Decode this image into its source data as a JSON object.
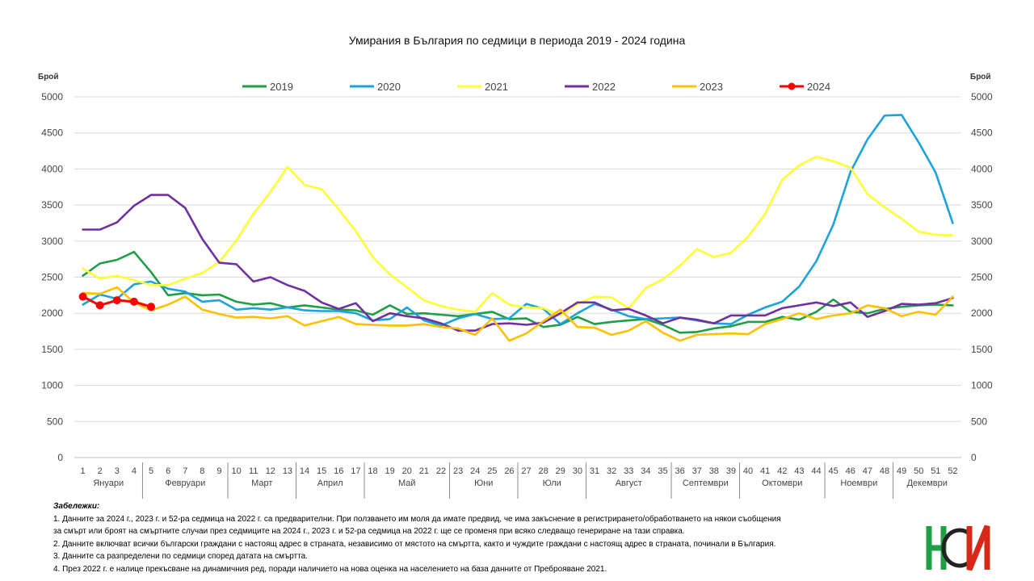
{
  "chart_data": {
    "type": "line",
    "title": "Умирания в България по седмици в периода 2019 - 2024 година",
    "ylabel_left": "Брой",
    "ylabel_right": "Брой",
    "ylim": [
      0,
      5000
    ],
    "yticks": [
      0,
      500,
      1000,
      1500,
      2000,
      2500,
      3000,
      3500,
      4000,
      4500,
      5000
    ],
    "grid": true,
    "legend_position": "top",
    "weeks": [
      "1",
      "2",
      "3",
      "4",
      "5",
      "6",
      "7",
      "8",
      "9",
      "10",
      "11",
      "12",
      "13",
      "14",
      "15",
      "16",
      "17",
      "18",
      "19",
      "20",
      "21",
      "22",
      "23",
      "24",
      "25",
      "26",
      "27",
      "28",
      "29",
      "30",
      "31",
      "32",
      "33",
      "34",
      "35",
      "36",
      "37",
      "38",
      "39",
      "40",
      "41",
      "42",
      "43",
      "44",
      "45",
      "46",
      "47",
      "48",
      "49",
      "50",
      "51",
      "52"
    ],
    "months": [
      {
        "label": "Януари",
        "from": 1,
        "to": 4
      },
      {
        "label": "Февруари",
        "from": 5,
        "to": 9
      },
      {
        "label": "Март",
        "from": 10,
        "to": 13
      },
      {
        "label": "Април",
        "from": 14,
        "to": 17
      },
      {
        "label": "Май",
        "from": 18,
        "to": 22
      },
      {
        "label": "Юни",
        "from": 23,
        "to": 26
      },
      {
        "label": "Юли",
        "from": 27,
        "to": 30
      },
      {
        "label": "Август",
        "from": 31,
        "to": 35
      },
      {
        "label": "Септември",
        "from": 36,
        "to": 39
      },
      {
        "label": "Октомври",
        "from": 40,
        "to": 44
      },
      {
        "label": "Ноември",
        "from": 45,
        "to": 48
      },
      {
        "label": "Декември",
        "from": 49,
        "to": 52
      }
    ],
    "series": [
      {
        "name": "2019",
        "color": "#1f9e46",
        "values": [
          2520,
          2690,
          2740,
          2850,
          2570,
          2250,
          2280,
          2250,
          2260,
          2160,
          2120,
          2140,
          2080,
          2110,
          2080,
          2050,
          2040,
          1980,
          2110,
          1990,
          2000,
          1980,
          1960,
          1990,
          2020,
          1920,
          1930,
          1810,
          1840,
          1950,
          1850,
          1880,
          1900,
          1920,
          1840,
          1730,
          1740,
          1790,
          1820,
          1880,
          1880,
          1950,
          1910,
          2020,
          2190,
          2020,
          2000,
          2060,
          2090,
          2110,
          2120,
          2110
        ],
        "marker": false
      },
      {
        "name": "2020",
        "color": "#1aa3dc",
        "values": [
          2120,
          2260,
          2200,
          2400,
          2440,
          2340,
          2300,
          2160,
          2180,
          2050,
          2070,
          2050,
          2080,
          2040,
          2030,
          2030,
          2000,
          1900,
          1920,
          2080,
          1900,
          1830,
          1930,
          1990,
          1920,
          1930,
          2130,
          2060,
          1850,
          2000,
          2130,
          2050,
          1960,
          1920,
          1930,
          1940,
          1900,
          1860,
          1850,
          1980,
          2080,
          2160,
          2370,
          2720,
          3230,
          3960,
          4410,
          4740,
          4750,
          4370,
          3950,
          3250
        ],
        "marker": false
      },
      {
        "name": "2021",
        "color": "#ffff33",
        "values": [
          2620,
          2480,
          2520,
          2460,
          2390,
          2390,
          2480,
          2560,
          2710,
          3010,
          3380,
          3680,
          4030,
          3780,
          3720,
          3440,
          3140,
          2780,
          2540,
          2360,
          2180,
          2100,
          2050,
          2020,
          2280,
          2120,
          2080,
          2070,
          1970,
          2130,
          2230,
          2220,
          2070,
          2350,
          2470,
          2660,
          2890,
          2780,
          2840,
          3060,
          3380,
          3850,
          4050,
          4170,
          4110,
          4020,
          3650,
          3470,
          3310,
          3130,
          3090,
          3080
        ],
        "marker": false
      },
      {
        "name": "2022",
        "color": "#7030a0",
        "values": [
          3160,
          3160,
          3260,
          3490,
          3640,
          3640,
          3460,
          3030,
          2700,
          2680,
          2440,
          2500,
          2390,
          2310,
          2150,
          2060,
          2140,
          1890,
          2000,
          1960,
          1930,
          1860,
          1760,
          1760,
          1850,
          1860,
          1840,
          1870,
          2000,
          2150,
          2150,
          2040,
          2060,
          1970,
          1860,
          1940,
          1910,
          1860,
          1970,
          1970,
          1970,
          2070,
          2110,
          2150,
          2100,
          2150,
          1950,
          2030,
          2130,
          2120,
          2140,
          2210
        ],
        "marker": false
      },
      {
        "name": "2023",
        "color": "#ffc000",
        "values": [
          2280,
          2270,
          2360,
          2150,
          2040,
          2120,
          2230,
          2050,
          1990,
          1940,
          1950,
          1930,
          1960,
          1830,
          1890,
          1950,
          1850,
          1840,
          1830,
          1830,
          1850,
          1810,
          1790,
          1700,
          1930,
          1620,
          1720,
          1890,
          2050,
          1810,
          1800,
          1700,
          1760,
          1890,
          1730,
          1620,
          1700,
          1710,
          1720,
          1710,
          1850,
          1920,
          2000,
          1920,
          1970,
          2000,
          2110,
          2070,
          1960,
          2020,
          1980,
          2230
        ],
        "marker": false
      },
      {
        "name": "2024",
        "color": "#ff0000",
        "values": [
          2230,
          2110,
          2180,
          2160,
          2090
        ],
        "marker": true
      }
    ]
  },
  "notes": {
    "heading": "Забележки:",
    "lines": [
      "1. Данните за 2024 г., 2023 г. и 52-ра седмица на 2022 г. са предварителни. При ползването им моля да имате предвид, че има закъснение в регистрирането/обработването на някои съобщения",
      "за смърт или броят на смъртните случаи през седмиците на 2024 г., 2023 г. и 52-ра седмица на 2022 г. ще се променя при всяко следващо генериране на тази справка.",
      "2. Данните включват всички български граждани с настоящ адрес в страната, независимо от мястото на смъртта, както и чуждите граждани с настоящ адрес в страната, починали в България.",
      "3. Данните са разпределени по седмици според  датата на смъртта.",
      "4. През 2022 г.  е налице прекъсване на динамичния ред, поради наличието на нова оценка на населението на база данните от Преброяване 2021."
    ]
  },
  "logo": {
    "text": "НСИ",
    "colors": [
      "#d7291a",
      "#1f9e46",
      "#222222"
    ]
  }
}
